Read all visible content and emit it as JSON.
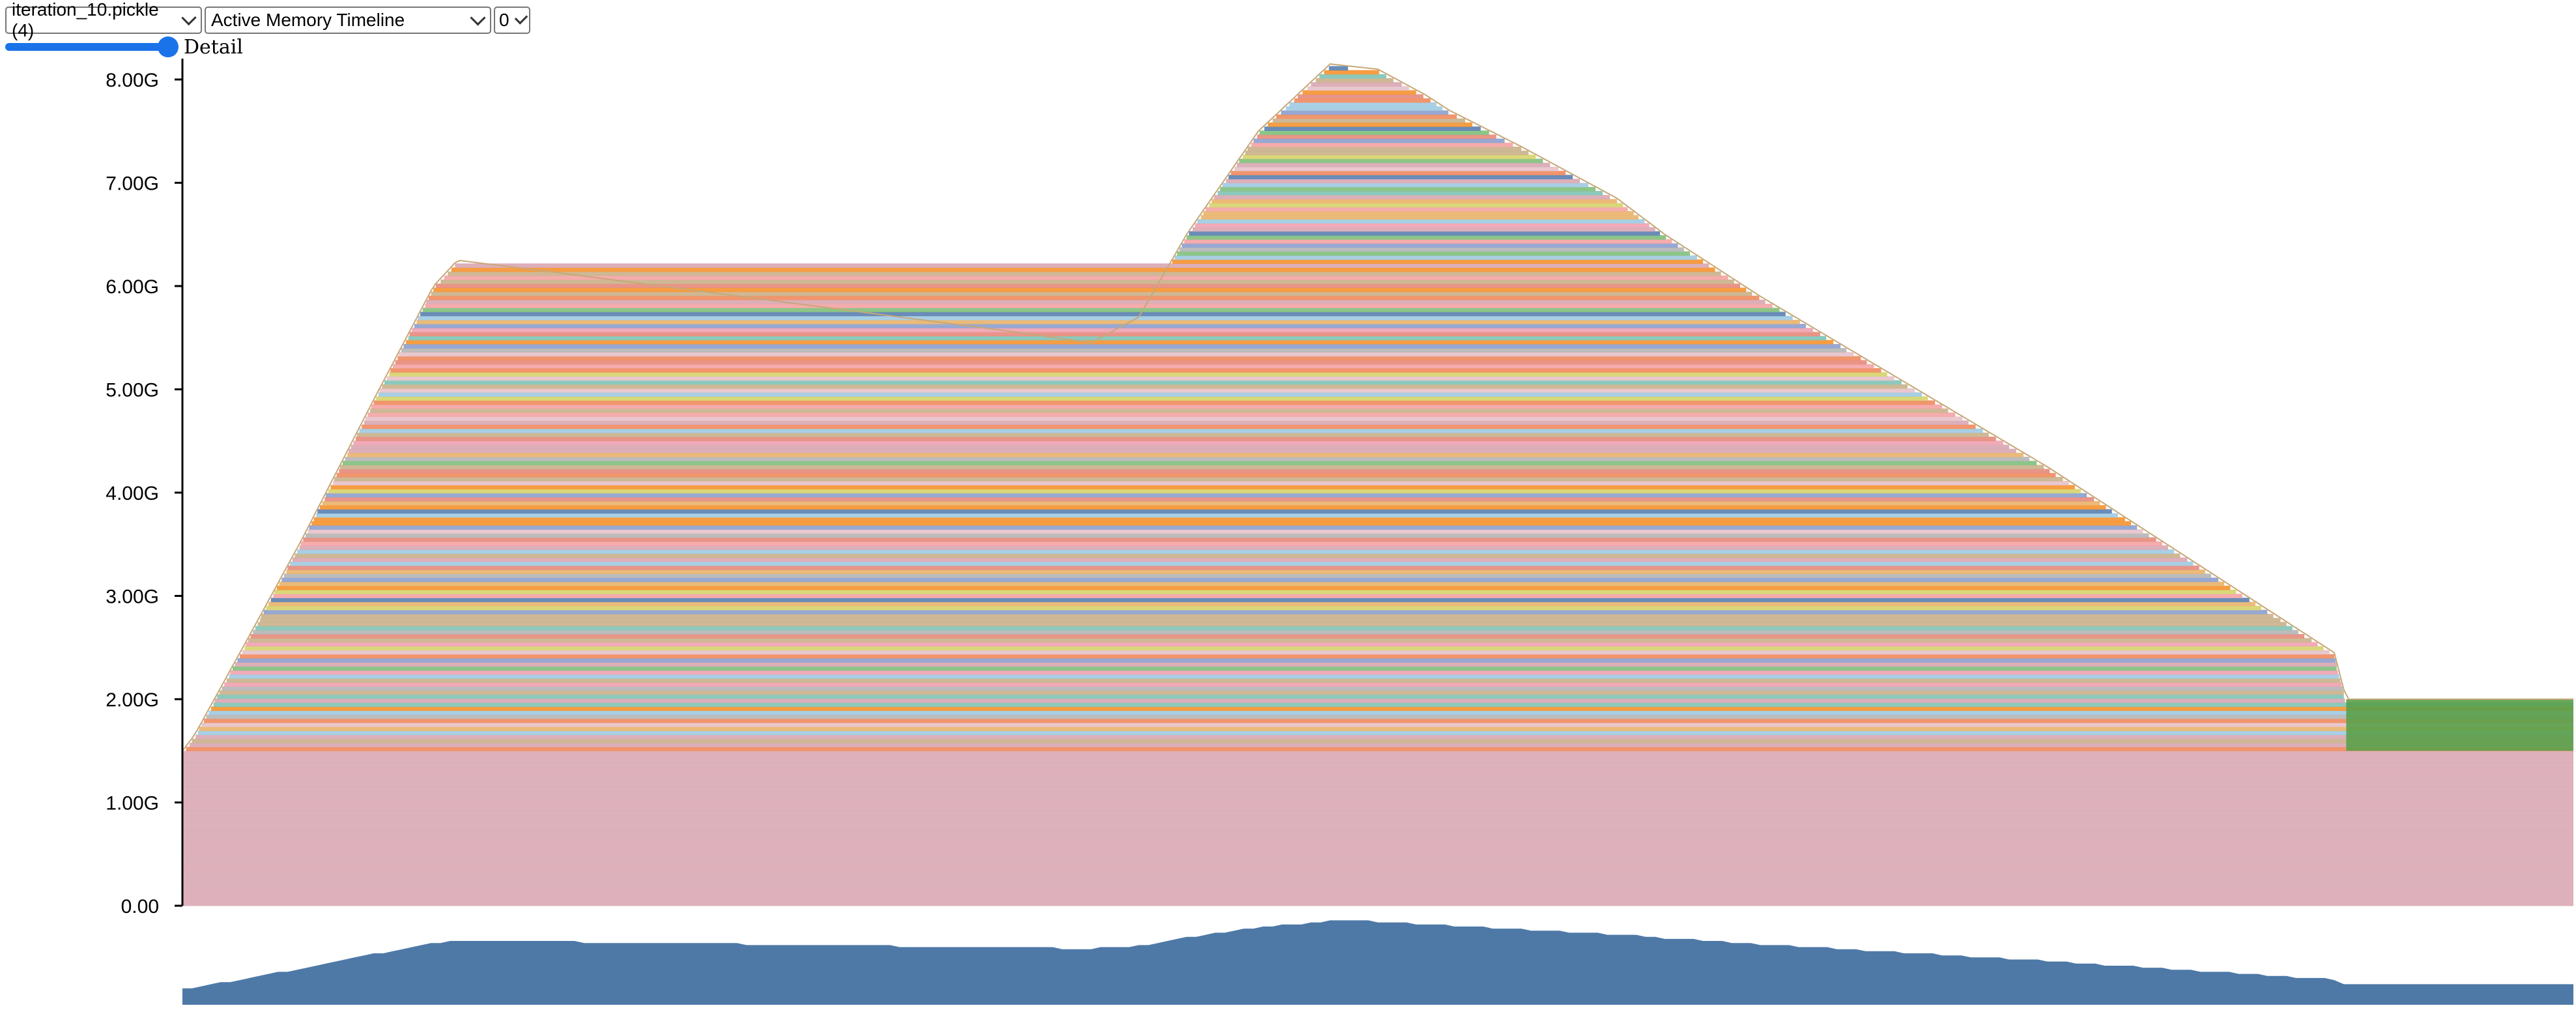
{
  "controls": {
    "file_select": "iteration_10.pickle (4)",
    "view_select": "Active Memory Timeline",
    "device_select": "0",
    "slider_label": "Detail",
    "slider_value": 1.0
  },
  "chart_data": {
    "type": "area",
    "title": "",
    "xlabel": "",
    "ylabel": "",
    "ylim": [
      0,
      8.2
    ],
    "yticks": [
      "0.00",
      "1.00G",
      "2.00G",
      "3.00G",
      "4.00G",
      "5.00G",
      "6.00G",
      "7.00G",
      "8.00G"
    ],
    "grid": false,
    "legend": "none",
    "stacked": true,
    "total_memory_gb": {
      "x": [
        0,
        0.005,
        0.03,
        0.05,
        0.08,
        0.105,
        0.115,
        0.15,
        0.2,
        0.25,
        0.3,
        0.35,
        0.38,
        0.4,
        0.42,
        0.45,
        0.48,
        0.5,
        0.52,
        0.53,
        0.56,
        0.6,
        0.62,
        0.66,
        0.7,
        0.74,
        0.78,
        0.82,
        0.86,
        0.88,
        0.9,
        0.905,
        0.91,
        1.0
      ],
      "y": [
        1.5,
        1.65,
        2.7,
        3.55,
        4.9,
        6.0,
        6.25,
        6.15,
        6.0,
        5.85,
        5.7,
        5.55,
        5.45,
        5.7,
        6.5,
        7.5,
        8.15,
        8.1,
        7.85,
        7.7,
        7.35,
        6.85,
        6.5,
        5.9,
        5.35,
        4.8,
        4.25,
        3.65,
        3.05,
        2.75,
        2.45,
        2.0,
        2.0,
        2.0
      ]
    },
    "baseline_gb": 1.5,
    "colors": [
      "#e6897b",
      "#d8a6b1",
      "#f0a1b0",
      "#8c9fce",
      "#e9b36a",
      "#7fbf7b",
      "#c9b08a",
      "#f08a5d",
      "#9ecae1",
      "#e7c1c9",
      "#b5b5b5",
      "#d6d36b",
      "#5a7fb0",
      "#f4a3a3",
      "#80c3b5"
    ],
    "highlight_colors": {
      "orange": "#f5922f",
      "green": "#5aa04a",
      "teal": "#72b7b2"
    },
    "overview_fill": "#4e79a7"
  }
}
